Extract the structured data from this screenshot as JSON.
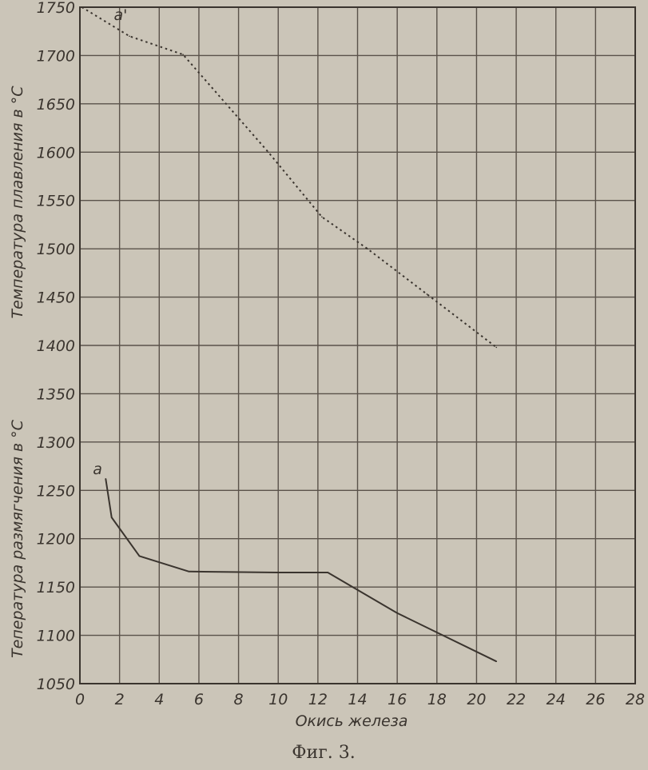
{
  "chart_data": {
    "type": "line",
    "caption": "Фиг. 3.",
    "xlabel": "Окись железа",
    "ylabel_upper": "Температура плавления в °С",
    "ylabel_lower": "Тепература размягчения в °С",
    "xlim": [
      0,
      28
    ],
    "ylim": [
      1050,
      1750
    ],
    "x_ticks": [
      0,
      2,
      4,
      6,
      8,
      10,
      12,
      14,
      16,
      18,
      20,
      22,
      24,
      26,
      28
    ],
    "x_tick_labels": [
      "0",
      "2",
      "4",
      "6",
      "8",
      "10",
      "12",
      "14",
      "16",
      "18",
      "20",
      "22",
      "24",
      "26",
      "28"
    ],
    "y_ticks": [
      1050,
      1100,
      1150,
      1200,
      1250,
      1300,
      1350,
      1400,
      1450,
      1500,
      1550,
      1600,
      1650,
      1700,
      1750
    ],
    "y_tick_labels": [
      "1050",
      "1100",
      "1150",
      "1200",
      "1250",
      "1300",
      "1350",
      "1400",
      "1450",
      "1500",
      "1550",
      "1600",
      "1650",
      "1700",
      "1750"
    ],
    "grid": true,
    "series": [
      {
        "name": "a'",
        "style": "dotted",
        "x": [
          0.1,
          2.5,
          5.2,
          9.5,
          12.2,
          14.5,
          17.5,
          21
        ],
        "y": [
          1750,
          1720,
          1701,
          1600,
          1533,
          1500,
          1453,
          1398
        ]
      },
      {
        "name": "a",
        "style": "solid",
        "x": [
          1.3,
          1.6,
          3,
          5.5,
          10,
          12.5,
          16,
          21
        ],
        "y": [
          1262,
          1222,
          1182,
          1166,
          1165,
          1165,
          1123,
          1073
        ]
      }
    ],
    "colors": {
      "ink": "#3a342e",
      "grid": "#5a524a",
      "paper": "#cbc5b8"
    }
  }
}
